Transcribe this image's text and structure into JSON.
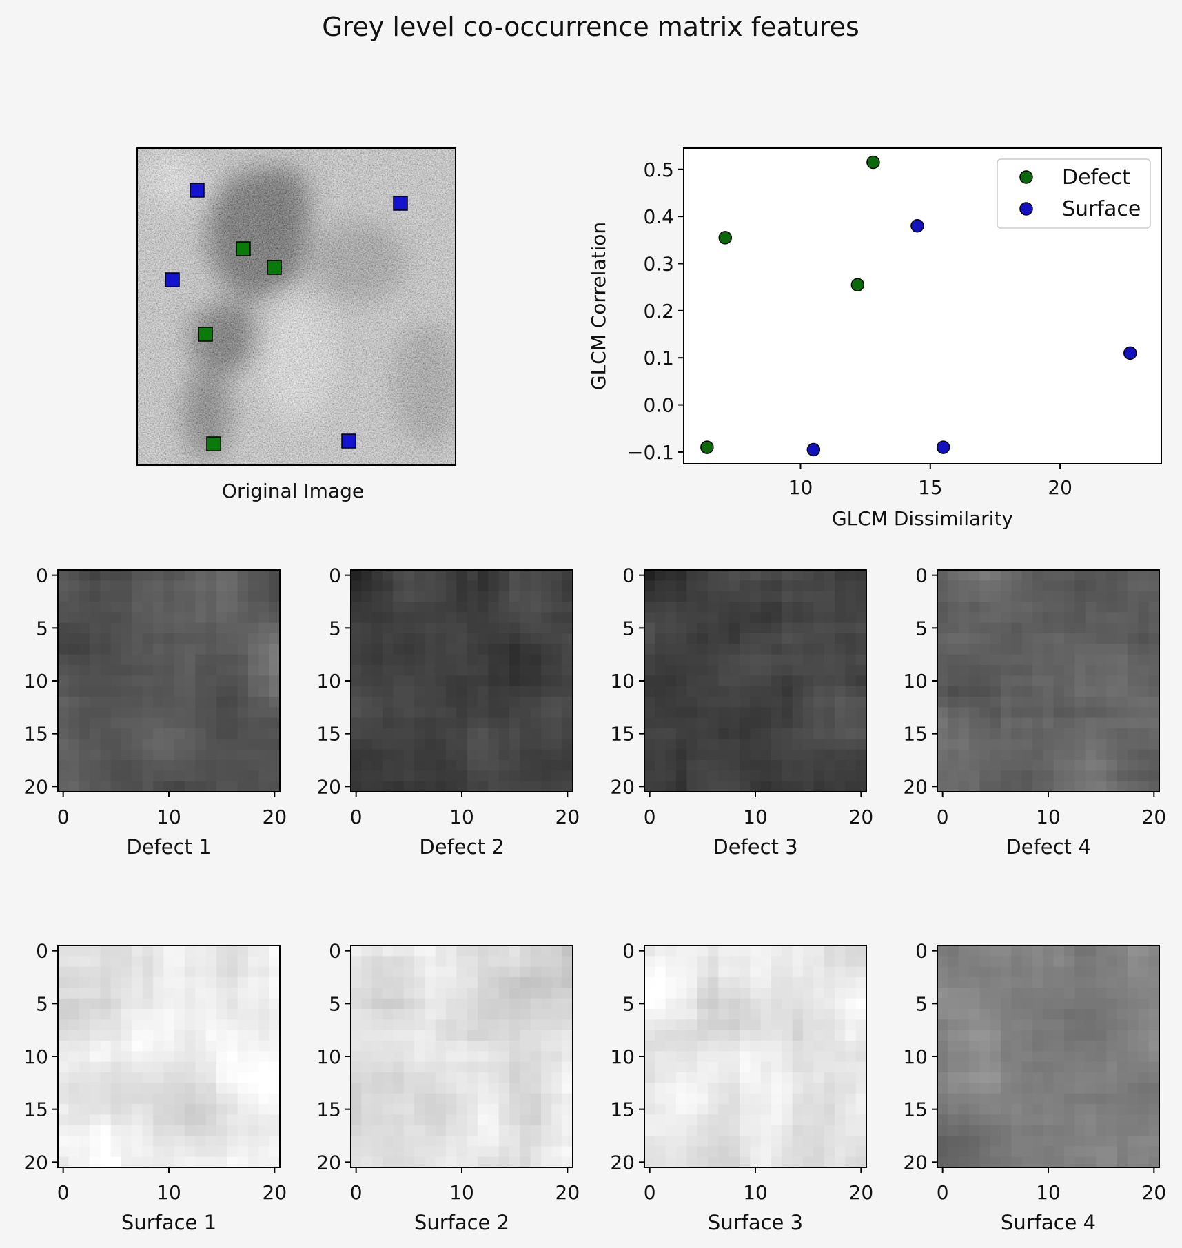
{
  "figure": {
    "title": "Grey level co-occurrence matrix features",
    "original_image_label": "Original Image",
    "original_image_markers": {
      "defect_color": "#0a7a0a",
      "surface_color": "#1414d0"
    }
  },
  "chart_data": [
    {
      "type": "scatter",
      "title": "",
      "xlabel": "GLCM Dissimilarity",
      "ylabel": "GLCM Correlation",
      "xlim": [
        5.5,
        23.9
      ],
      "ylim": [
        -0.125,
        0.545
      ],
      "xticks": [
        10,
        15,
        20
      ],
      "yticks": [
        -0.1,
        0.0,
        0.1,
        0.2,
        0.3,
        0.4,
        0.5
      ],
      "ytick_labels": [
        "−0.1",
        "0.0",
        "0.1",
        "0.2",
        "0.3",
        "0.4",
        "0.5"
      ],
      "grid": false,
      "legend": "top-right",
      "series": [
        {
          "name": "Defect",
          "color": "#0a6a0a",
          "x": [
            6.4,
            7.1,
            12.2,
            12.8
          ],
          "y": [
            -0.09,
            0.355,
            0.255,
            0.515
          ]
        },
        {
          "name": "Surface",
          "color": "#1212c0",
          "x": [
            10.5,
            14.5,
            15.5,
            22.7
          ],
          "y": [
            -0.095,
            0.38,
            -0.09,
            0.11
          ]
        }
      ]
    },
    {
      "type": "heatmap",
      "panels": [
        {
          "label": "Defect 1",
          "mean_gray": 88
        },
        {
          "label": "Defect 2",
          "mean_gray": 66
        },
        {
          "label": "Defect 3",
          "mean_gray": 70
        },
        {
          "label": "Defect 4",
          "mean_gray": 98
        },
        {
          "label": "Surface 1",
          "mean_gray": 232
        },
        {
          "label": "Surface 2",
          "mean_gray": 220
        },
        {
          "label": "Surface 3",
          "mean_gray": 232
        },
        {
          "label": "Surface 4",
          "mean_gray": 128
        }
      ],
      "xticks": [
        "0",
        "10",
        "20"
      ],
      "yticks": [
        "0",
        "5",
        "10",
        "15",
        "20"
      ],
      "xlim": [
        -0.5,
        20.5
      ],
      "ylim": [
        20.5,
        -0.5
      ]
    }
  ]
}
